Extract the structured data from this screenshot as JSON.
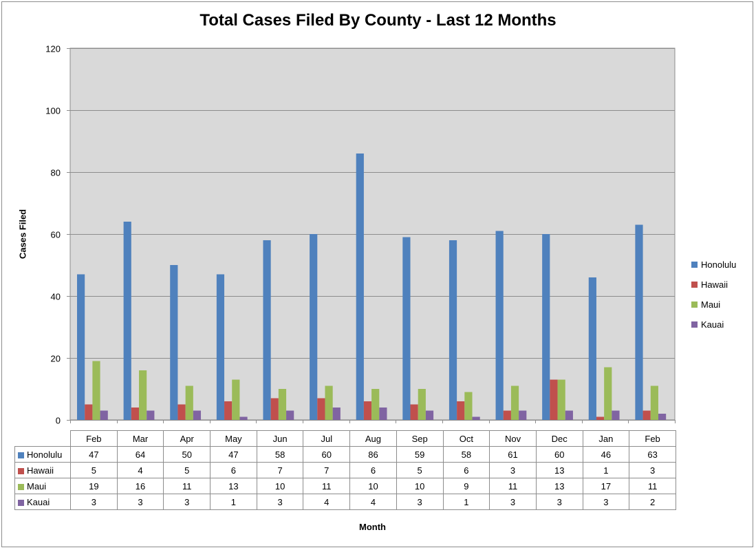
{
  "chart_data": {
    "type": "bar",
    "title": "Total Cases Filed By County - Last 12 Months",
    "xlabel": "Month",
    "ylabel": "Cases Filed",
    "ylim": [
      0,
      120
    ],
    "yticks": [
      "0",
      "20",
      "40",
      "60",
      "80",
      "100",
      "120"
    ],
    "grid": true,
    "legend_position": "right",
    "categories": [
      "Feb",
      "Mar",
      "Apr",
      "May",
      "Jun",
      "Jul",
      "Aug",
      "Sep",
      "Oct",
      "Nov",
      "Dec",
      "Jan",
      "Feb"
    ],
    "series": [
      {
        "name": "Honolulu",
        "color": "#4f81bd",
        "values": [
          47,
          64,
          50,
          47,
          58,
          60,
          86,
          59,
          58,
          61,
          60,
          46,
          63
        ]
      },
      {
        "name": "Hawaii",
        "color": "#c0504d",
        "values": [
          5,
          4,
          5,
          6,
          7,
          7,
          6,
          5,
          6,
          3,
          13,
          1,
          3
        ]
      },
      {
        "name": "Maui",
        "color": "#9bbb59",
        "values": [
          19,
          16,
          11,
          13,
          10,
          11,
          10,
          10,
          9,
          11,
          13,
          17,
          11
        ]
      },
      {
        "name": "Kauai",
        "color": "#8064a2",
        "values": [
          3,
          3,
          3,
          1,
          3,
          4,
          4,
          3,
          1,
          3,
          3,
          3,
          2
        ]
      }
    ],
    "data_table": true
  }
}
